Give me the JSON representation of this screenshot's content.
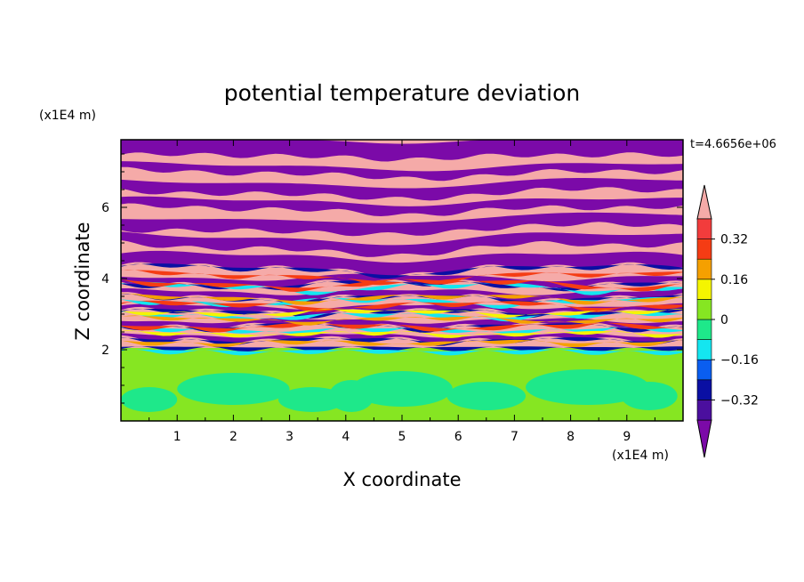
{
  "chart_data": {
    "type": "heatmap",
    "title": "potential temperature deviation",
    "xlabel": "X coordinate",
    "ylabel": "Z coordinate",
    "x_unit": "(x1E4 m)",
    "y_unit": "(x1E4 m)",
    "time_label": "t=4.6656e+06",
    "xlim": [
      0,
      10
    ],
    "ylim": [
      0,
      7.9
    ],
    "x_ticks": [
      1,
      2,
      3,
      4,
      5,
      6,
      7,
      8,
      9
    ],
    "y_ticks": [
      2,
      4,
      6
    ],
    "x_tick_labels": [
      "1",
      "2",
      "3",
      "4",
      "5",
      "6",
      "7",
      "8",
      "9"
    ],
    "y_tick_labels": [
      "2",
      "4",
      "6"
    ],
    "colorbar": {
      "levels": [
        -0.4,
        -0.32,
        -0.24,
        -0.16,
        -0.08,
        0,
        0.08,
        0.16,
        0.24,
        0.32,
        0.4
      ],
      "colors": [
        "#7b0aa8",
        "#4b0f9e",
        "#0a0fa3",
        "#0a5ef0",
        "#14e6f0",
        "#1ee88a",
        "#86e622",
        "#f5f500",
        "#f5a000",
        "#f53c14",
        "#f23c3c",
        "#f5aaa8"
      ],
      "tick_values": [
        0.32,
        0.16,
        0,
        -0.16,
        -0.32
      ],
      "tick_labels": [
        "0.32",
        "0.16",
        "0",
        "−0.16",
        "−0.32"
      ],
      "extend": "both"
    }
  }
}
